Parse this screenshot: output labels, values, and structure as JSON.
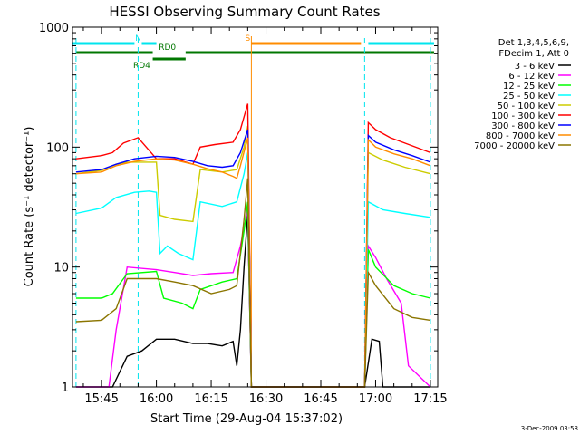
{
  "chart_data": {
    "type": "line",
    "title": "HESSI Observing Summary Count Rates",
    "xlabel": "Start Time (29-Aug-04 15:37:02)",
    "ylabel": "Count Rate (s⁻¹ detector⁻¹)",
    "y_scale": "log",
    "ylim": [
      1,
      1000
    ],
    "xlim": [
      "15:37:02",
      "17:17:00"
    ],
    "grid": false,
    "legend_position": "right",
    "legend_header": [
      "Det 1,3,4,5,6,9,",
      "FDecim 1, Att 0"
    ],
    "x_ticks": [
      {
        "value": "15:45",
        "label": "15:45"
      },
      {
        "value": "16:00",
        "label": "16:00"
      },
      {
        "value": "16:15",
        "label": "16:15"
      },
      {
        "value": "16:30",
        "label": "16:30"
      },
      {
        "value": "16:45",
        "label": "16:45"
      },
      {
        "value": "17:00",
        "label": "17:00"
      },
      {
        "value": "17:15",
        "label": "17:15"
      }
    ],
    "y_ticks": [
      {
        "value": 1,
        "label": "1"
      },
      {
        "value": 10,
        "label": "10"
      },
      {
        "value": 100,
        "label": "100"
      },
      {
        "value": 1000,
        "label": "1000"
      }
    ],
    "night_boundaries": [
      "15:38",
      "15:55",
      "16:57",
      "17:15"
    ],
    "saa_line": "16:26",
    "flags": [
      {
        "name": "N",
        "color": "#00e5ee",
        "segments": [
          [
            "15:37",
            "15:54"
          ],
          [
            "15:56",
            "16:00"
          ],
          [
            "16:58",
            "17:16"
          ]
        ],
        "level": "top",
        "label_at": "15:55"
      },
      {
        "name": "S",
        "color": "#ff8c00",
        "segments": [
          [
            "16:26",
            "16:56"
          ]
        ],
        "level": "top",
        "label_at": "16:25"
      },
      {
        "name": "RD0",
        "color": "#007700",
        "segments": [
          [
            "15:38",
            "15:59"
          ],
          [
            "16:08",
            "17:16"
          ]
        ],
        "level": "middle",
        "label_at": "16:03"
      },
      {
        "name": "RD4",
        "color": "#007700",
        "segments": [
          [
            "15:59",
            "16:08"
          ]
        ],
        "level": "low",
        "label_at": "15:56"
      }
    ],
    "series": [
      {
        "name": "3 - 6 keV",
        "color": "#000000",
        "points": [
          [
            "15:38",
            1
          ],
          [
            "15:48",
            1
          ],
          [
            "15:52",
            1.8
          ],
          [
            "15:56",
            2.0
          ],
          [
            "16:00",
            2.5
          ],
          [
            "16:05",
            2.5
          ],
          [
            "16:10",
            2.3
          ],
          [
            "16:14",
            2.3
          ],
          [
            "16:18",
            2.2
          ],
          [
            "16:21",
            2.4
          ],
          [
            "16:22",
            1.5
          ],
          [
            "16:23",
            3
          ],
          [
            "16:24",
            10
          ],
          [
            "16:25",
            28
          ],
          [
            "16:26",
            1
          ],
          [
            "16:57",
            1
          ],
          [
            "16:59",
            2.5
          ],
          [
            "17:01",
            2.4
          ],
          [
            "17:02",
            1
          ],
          [
            "17:15",
            1
          ]
        ]
      },
      {
        "name": "6 - 12 keV",
        "color": "#ff00ff",
        "points": [
          [
            "15:38",
            1
          ],
          [
            "15:47",
            1
          ],
          [
            "15:49",
            3
          ],
          [
            "15:52",
            10
          ],
          [
            "16:00",
            9.5
          ],
          [
            "16:05",
            9
          ],
          [
            "16:10",
            8.5
          ],
          [
            "16:15",
            8.8
          ],
          [
            "16:21",
            9
          ],
          [
            "16:23",
            15
          ],
          [
            "16:25",
            30
          ],
          [
            "16:26",
            1
          ],
          [
            "16:57",
            1
          ],
          [
            "16:58",
            15
          ],
          [
            "17:00",
            12
          ],
          [
            "17:03",
            8
          ],
          [
            "17:07",
            5
          ],
          [
            "17:09",
            1.5
          ],
          [
            "17:15",
            1
          ]
        ]
      },
      {
        "name": "12 - 25 keV",
        "color": "#00ff00",
        "points": [
          [
            "15:38",
            5.5
          ],
          [
            "15:45",
            5.5
          ],
          [
            "15:48",
            6
          ],
          [
            "15:52",
            8.8
          ],
          [
            "16:00",
            9.2
          ],
          [
            "16:02",
            5.5
          ],
          [
            "16:07",
            5.0
          ],
          [
            "16:10",
            4.5
          ],
          [
            "16:12",
            6.5
          ],
          [
            "16:18",
            7.5
          ],
          [
            "16:22",
            8
          ],
          [
            "16:24",
            20
          ],
          [
            "16:25",
            35
          ],
          [
            "16:26",
            1
          ],
          [
            "16:57",
            1
          ],
          [
            "16:58",
            14
          ],
          [
            "17:00",
            10
          ],
          [
            "17:05",
            7
          ],
          [
            "17:10",
            6
          ],
          [
            "17:15",
            5.5
          ]
        ]
      },
      {
        "name": "25 - 50 keV",
        "color": "#00ffff",
        "points": [
          [
            "15:38",
            28
          ],
          [
            "15:45",
            31
          ],
          [
            "15:49",
            38
          ],
          [
            "15:54",
            42
          ],
          [
            "15:58",
            43
          ],
          [
            "16:00",
            42
          ],
          [
            "16:01",
            13
          ],
          [
            "16:03",
            15
          ],
          [
            "16:06",
            13
          ],
          [
            "16:10",
            11.5
          ],
          [
            "16:12",
            35
          ],
          [
            "16:18",
            32
          ],
          [
            "16:22",
            35
          ],
          [
            "16:24",
            60
          ],
          [
            "16:25",
            90
          ],
          [
            "16:26",
            1
          ],
          [
            "16:57",
            1
          ],
          [
            "16:58",
            35
          ],
          [
            "17:02",
            30
          ],
          [
            "17:08",
            28
          ],
          [
            "17:15",
            26
          ]
        ]
      },
      {
        "name": "50 - 100 keV",
        "color": "#cccc00",
        "points": [
          [
            "15:38",
            60
          ],
          [
            "15:45",
            64
          ],
          [
            "15:49",
            72
          ],
          [
            "15:52",
            75
          ],
          [
            "16:00",
            75
          ],
          [
            "16:01",
            27
          ],
          [
            "16:05",
            25
          ],
          [
            "16:10",
            24
          ],
          [
            "16:12",
            65
          ],
          [
            "16:18",
            62
          ],
          [
            "16:22",
            65
          ],
          [
            "16:24",
            100
          ],
          [
            "16:25",
            150
          ],
          [
            "16:26",
            1
          ],
          [
            "16:57",
            1
          ],
          [
            "16:58",
            90
          ],
          [
            "17:02",
            78
          ],
          [
            "17:08",
            68
          ],
          [
            "17:15",
            60
          ]
        ]
      },
      {
        "name": "100 - 300 keV",
        "color": "#ff0000",
        "points": [
          [
            "15:38",
            80
          ],
          [
            "15:45",
            85
          ],
          [
            "15:48",
            90
          ],
          [
            "15:51",
            108
          ],
          [
            "15:55",
            120
          ],
          [
            "16:00",
            80
          ],
          [
            "16:05",
            80
          ],
          [
            "16:10",
            72
          ],
          [
            "16:12",
            100
          ],
          [
            "16:16",
            105
          ],
          [
            "16:21",
            110
          ],
          [
            "16:23",
            140
          ],
          [
            "16:25",
            230
          ],
          [
            "16:26",
            1
          ],
          [
            "16:57",
            1
          ],
          [
            "16:58",
            160
          ],
          [
            "17:00",
            140
          ],
          [
            "17:04",
            120
          ],
          [
            "17:08",
            108
          ],
          [
            "17:15",
            90
          ]
        ]
      },
      {
        "name": "300 - 800 keV",
        "color": "#0000ff",
        "points": [
          [
            "15:38",
            62
          ],
          [
            "15:45",
            65
          ],
          [
            "15:49",
            72
          ],
          [
            "15:54",
            80
          ],
          [
            "16:00",
            84
          ],
          [
            "16:05",
            82
          ],
          [
            "16:10",
            76
          ],
          [
            "16:14",
            70
          ],
          [
            "16:18",
            68
          ],
          [
            "16:21",
            70
          ],
          [
            "16:23",
            90
          ],
          [
            "16:25",
            140
          ],
          [
            "16:26",
            1
          ],
          [
            "16:57",
            1
          ],
          [
            "16:58",
            125
          ],
          [
            "17:00",
            110
          ],
          [
            "17:05",
            95
          ],
          [
            "17:10",
            85
          ],
          [
            "17:15",
            75
          ]
        ]
      },
      {
        "name": "800 - 7000 keV",
        "color": "#ff8c00",
        "points": [
          [
            "15:38",
            60
          ],
          [
            "15:45",
            62
          ],
          [
            "15:49",
            70
          ],
          [
            "15:54",
            76
          ],
          [
            "16:00",
            80
          ],
          [
            "16:05",
            78
          ],
          [
            "16:10",
            72
          ],
          [
            "16:14",
            66
          ],
          [
            "16:18",
            62
          ],
          [
            "16:21",
            57
          ],
          [
            "16:22",
            55
          ],
          [
            "16:23",
            70
          ],
          [
            "16:25",
            120
          ],
          [
            "16:26",
            1
          ],
          [
            "16:57",
            1
          ],
          [
            "16:58",
            115
          ],
          [
            "17:00",
            100
          ],
          [
            "17:05",
            88
          ],
          [
            "17:10",
            80
          ],
          [
            "17:15",
            70
          ]
        ]
      },
      {
        "name": "7000 - 20000 keV",
        "color": "#8b7500",
        "points": [
          [
            "15:38",
            3.5
          ],
          [
            "15:45",
            3.6
          ],
          [
            "15:49",
            4.5
          ],
          [
            "15:52",
            8
          ],
          [
            "16:00",
            8
          ],
          [
            "16:05",
            7.5
          ],
          [
            "16:10",
            7.0
          ],
          [
            "16:15",
            6.0
          ],
          [
            "16:20",
            6.5
          ],
          [
            "16:22",
            7
          ],
          [
            "16:24",
            25
          ],
          [
            "16:25",
            55
          ],
          [
            "16:26",
            1
          ],
          [
            "16:57",
            1
          ],
          [
            "16:58",
            9
          ],
          [
            "17:00",
            7
          ],
          [
            "17:05",
            4.5
          ],
          [
            "17:10",
            3.8
          ],
          [
            "17:15",
            3.6
          ]
        ]
      }
    ]
  },
  "footer_date": "3-Dec-2009 03:58"
}
